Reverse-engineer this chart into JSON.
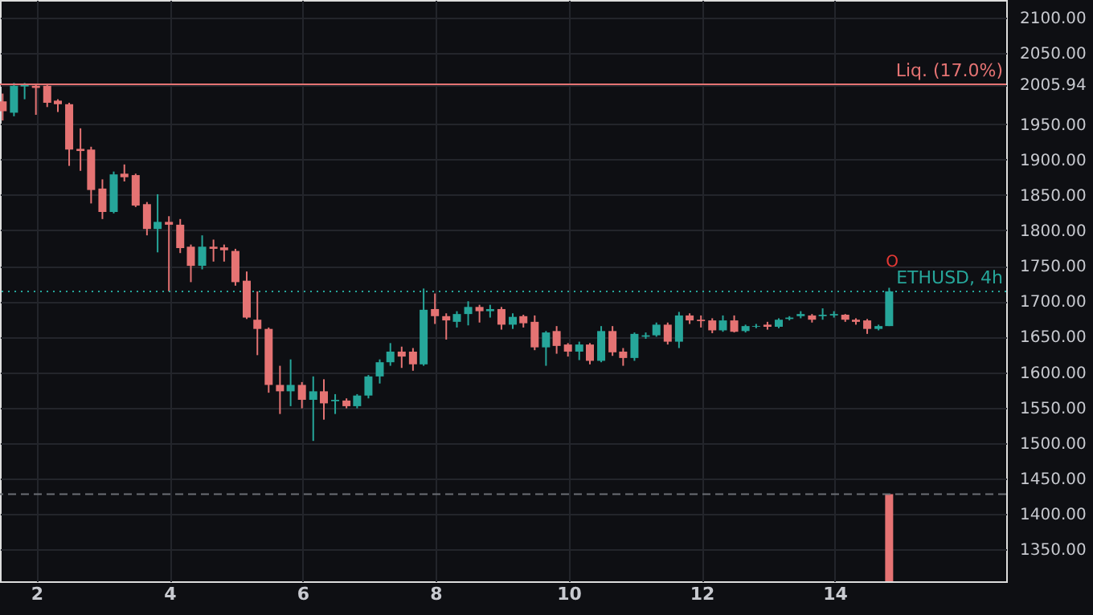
{
  "chart_data": {
    "type": "candlestick",
    "x": [
      1.49,
      1.66,
      1.82,
      1.99,
      2.16,
      2.32,
      2.49,
      2.66,
      2.82,
      2.99,
      3.16,
      3.32,
      3.49,
      3.66,
      3.82,
      3.99,
      4.16,
      4.32,
      4.49,
      4.66,
      4.82,
      4.99,
      5.16,
      5.32,
      5.49,
      5.66,
      5.82,
      5.99,
      6.16,
      6.32,
      6.49,
      6.66,
      6.82,
      6.99,
      7.16,
      7.32,
      7.49,
      7.66,
      7.82,
      7.99,
      8.16,
      8.32,
      8.49,
      8.66,
      8.82,
      8.99,
      9.16,
      9.32,
      9.49,
      9.66,
      9.82,
      9.99,
      10.16,
      10.32,
      10.49,
      10.66,
      10.82,
      10.99,
      11.16,
      11.32,
      11.49,
      11.66,
      11.82,
      11.99,
      12.16,
      12.32,
      12.49,
      12.66,
      12.82,
      12.99,
      13.16,
      13.32,
      13.49,
      13.66,
      13.82,
      13.99,
      14.16,
      14.32,
      14.49,
      14.66,
      14.82
    ],
    "ohlc": [
      [
        1982,
        1993,
        1955,
        1968
      ],
      [
        1966,
        2008,
        1961,
        2004
      ],
      [
        2003,
        2008,
        1985,
        2005
      ],
      [
        2004,
        2006,
        1963,
        2001
      ],
      [
        2004,
        2006,
        1974,
        1980
      ],
      [
        1983,
        1985,
        1967,
        1978
      ],
      [
        1978,
        1980,
        1891,
        1914
      ],
      [
        1915,
        1944,
        1884,
        1912
      ],
      [
        1914,
        1918,
        1838,
        1857
      ],
      [
        1859,
        1872,
        1816,
        1826
      ],
      [
        1826,
        1883,
        1824,
        1879
      ],
      [
        1880,
        1893,
        1869,
        1875
      ],
      [
        1878,
        1880,
        1833,
        1835
      ],
      [
        1837,
        1840,
        1793,
        1802
      ],
      [
        1802,
        1851,
        1769,
        1812
      ],
      [
        1812,
        1820,
        1714,
        1808
      ],
      [
        1808,
        1816,
        1768,
        1775
      ],
      [
        1777,
        1780,
        1727,
        1750
      ],
      [
        1750,
        1793,
        1745,
        1777
      ],
      [
        1777,
        1787,
        1756,
        1774
      ],
      [
        1776,
        1780,
        1756,
        1772
      ],
      [
        1771,
        1774,
        1722,
        1727
      ],
      [
        1729,
        1742,
        1675,
        1677
      ],
      [
        1674,
        1714,
        1624,
        1661
      ],
      [
        1661,
        1663,
        1571,
        1582
      ],
      [
        1582,
        1609,
        1541,
        1573
      ],
      [
        1573,
        1618,
        1552,
        1582
      ],
      [
        1582,
        1586,
        1549,
        1561
      ],
      [
        1561,
        1594,
        1503,
        1573
      ],
      [
        1573,
        1590,
        1533,
        1556
      ],
      [
        1559,
        1569,
        1541,
        1561
      ],
      [
        1560,
        1563,
        1549,
        1552
      ],
      [
        1552,
        1569,
        1549,
        1567
      ],
      [
        1567,
        1596,
        1563,
        1594
      ],
      [
        1594,
        1618,
        1584,
        1614
      ],
      [
        1614,
        1641,
        1609,
        1629
      ],
      [
        1629,
        1636,
        1606,
        1622
      ],
      [
        1629,
        1634,
        1602,
        1611
      ],
      [
        1611,
        1718,
        1609,
        1688
      ],
      [
        1689,
        1711,
        1668,
        1679
      ],
      [
        1679,
        1683,
        1646,
        1673
      ],
      [
        1671,
        1686,
        1663,
        1682
      ],
      [
        1682,
        1700,
        1666,
        1692
      ],
      [
        1692,
        1695,
        1670,
        1686
      ],
      [
        1686,
        1695,
        1677,
        1689
      ],
      [
        1689,
        1692,
        1660,
        1667
      ],
      [
        1667,
        1683,
        1661,
        1678
      ],
      [
        1679,
        1681,
        1663,
        1669
      ],
      [
        1671,
        1680,
        1631,
        1635
      ],
      [
        1635,
        1658,
        1609,
        1656
      ],
      [
        1658,
        1665,
        1626,
        1637
      ],
      [
        1639,
        1641,
        1622,
        1629
      ],
      [
        1629,
        1643,
        1617,
        1639
      ],
      [
        1639,
        1641,
        1611,
        1616
      ],
      [
        1616,
        1665,
        1614,
        1658
      ],
      [
        1658,
        1665,
        1623,
        1628
      ],
      [
        1629,
        1634,
        1609,
        1620
      ],
      [
        1620,
        1656,
        1616,
        1654
      ],
      [
        1650,
        1656,
        1647,
        1652
      ],
      [
        1652,
        1670,
        1650,
        1667
      ],
      [
        1667,
        1670,
        1639,
        1643
      ],
      [
        1643,
        1685,
        1634,
        1680
      ],
      [
        1680,
        1683,
        1668,
        1673
      ],
      [
        1674,
        1680,
        1663,
        1672
      ],
      [
        1673,
        1676,
        1655,
        1659
      ],
      [
        1659,
        1680,
        1657,
        1673
      ],
      [
        1673,
        1680,
        1656,
        1657
      ],
      [
        1658,
        1667,
        1656,
        1665
      ],
      [
        1664,
        1668,
        1662,
        1665
      ],
      [
        1667,
        1671,
        1660,
        1664
      ],
      [
        1664,
        1676,
        1662,
        1674
      ],
      [
        1675,
        1679,
        1673,
        1677
      ],
      [
        1679,
        1686,
        1676,
        1682
      ],
      [
        1680,
        1682,
        1670,
        1674
      ],
      [
        1679,
        1690,
        1674,
        1681
      ],
      [
        1680,
        1686,
        1677,
        1682
      ],
      [
        1681,
        1682,
        1671,
        1674
      ],
      [
        1674,
        1676,
        1667,
        1671
      ],
      [
        1673,
        1675,
        1654,
        1661
      ],
      [
        1661,
        1667,
        1659,
        1665
      ],
      [
        1665,
        1719,
        1665,
        1714
      ]
    ],
    "colors": [
      "#e57373",
      "#26a69a",
      "#26a69a",
      "#e57373",
      "#e57373",
      "#e57373",
      "#e57373",
      "#e57373",
      "#e57373",
      "#e57373",
      "#26a69a",
      "#e57373",
      "#e57373",
      "#e57373",
      "#26a69a",
      "#e57373",
      "#e57373",
      "#e57373",
      "#26a69a",
      "#e57373",
      "#e57373",
      "#e57373",
      "#e57373",
      "#e57373",
      "#e57373",
      "#e57373",
      "#26a69a",
      "#e57373",
      "#26a69a",
      "#e57373",
      "#26a69a",
      "#e57373",
      "#26a69a",
      "#26a69a",
      "#26a69a",
      "#26a69a",
      "#e57373",
      "#e57373",
      "#26a69a",
      "#e57373",
      "#e57373",
      "#26a69a",
      "#26a69a",
      "#e57373",
      "#26a69a",
      "#e57373",
      "#26a69a",
      "#e57373",
      "#e57373",
      "#26a69a",
      "#e57373",
      "#e57373",
      "#26a69a",
      "#e57373",
      "#26a69a",
      "#e57373",
      "#e57373",
      "#26a69a",
      "#26a69a",
      "#26a69a",
      "#e57373",
      "#26a69a",
      "#e57373",
      "#e57373",
      "#e57373",
      "#26a69a",
      "#e57373",
      "#26a69a",
      "#26a69a",
      "#e57373",
      "#26a69a",
      "#26a69a",
      "#26a69a",
      "#e57373",
      "#26a69a",
      "#26a69a",
      "#e57373",
      "#e57373",
      "#e57373",
      "#26a69a",
      "#26a69a"
    ],
    "series": [
      {
        "type": "bar",
        "x": [
          14.82
        ],
        "base": [
          1305
        ],
        "values": [
          123
        ],
        "color": "#e57373"
      }
    ],
    "xlim": [
      1.45,
      16.58
    ],
    "xticks": [
      2,
      4,
      6,
      8,
      10,
      12,
      14
    ],
    "ylim": [
      1305,
      2125
    ],
    "yticks": [
      {
        "value": 1350,
        "label": "1350.00"
      },
      {
        "value": 1400,
        "label": "1400.00"
      },
      {
        "value": 1450,
        "label": "1450.00"
      },
      {
        "value": 1500,
        "label": "1500.00"
      },
      {
        "value": 1550,
        "label": "1550.00"
      },
      {
        "value": 1600,
        "label": "1600.00"
      },
      {
        "value": 1650,
        "label": "1650.00"
      },
      {
        "value": 1700,
        "label": "1700.00"
      },
      {
        "value": 1750,
        "label": "1750.00"
      },
      {
        "value": 1800,
        "label": "1800.00"
      },
      {
        "value": 1850,
        "label": "1850.00"
      },
      {
        "value": 1900,
        "label": "1900.00"
      },
      {
        "value": 1950,
        "label": "1950.00"
      },
      {
        "value": 2005.94,
        "label": "2005.94"
      },
      {
        "value": 2050,
        "label": "2050.00"
      },
      {
        "value": 2100,
        "label": "2100.00"
      }
    ],
    "grid": true,
    "ref_lines": [
      {
        "axis": "y",
        "value": 2005.94,
        "label": "Liq. (17.0%)",
        "color": "#e57373",
        "line_style": "solid"
      },
      {
        "axis": "y",
        "value": 1714,
        "label": "ETHUSD, 4h",
        "color": "#26a69a",
        "line_style": "dotted"
      },
      {
        "axis": "y",
        "value": 1428,
        "label": null,
        "color": "#6b6e75",
        "line_style": "dashed"
      }
    ],
    "annotations": [
      "O"
    ]
  }
}
